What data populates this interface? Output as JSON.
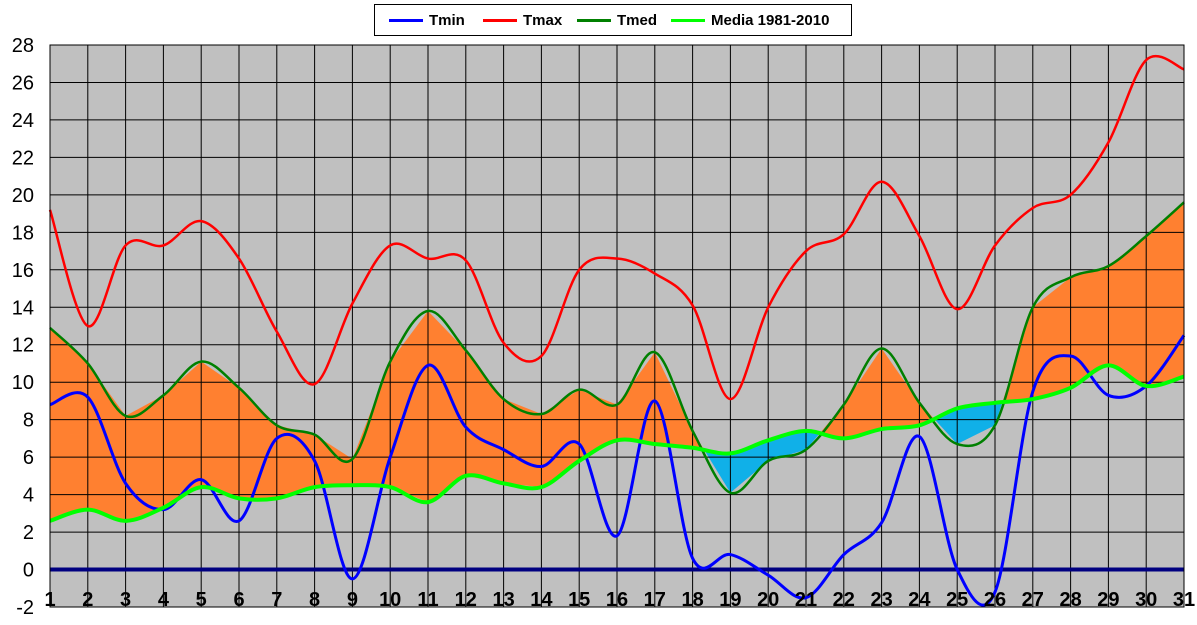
{
  "chart_data": {
    "type": "line",
    "title": "",
    "xlabel": "",
    "ylabel": "",
    "x": [
      1,
      2,
      3,
      4,
      5,
      6,
      7,
      8,
      9,
      10,
      11,
      12,
      13,
      14,
      15,
      16,
      17,
      18,
      19,
      20,
      21,
      22,
      23,
      24,
      25,
      26,
      27,
      28,
      29,
      30,
      31
    ],
    "xlim": [
      1,
      31
    ],
    "ylim": [
      -2,
      28
    ],
    "y_ticks": [
      -2,
      0,
      2,
      4,
      6,
      8,
      10,
      12,
      14,
      16,
      18,
      20,
      22,
      24,
      26,
      28
    ],
    "grid": true,
    "legend_position": "top-center",
    "plot_background": "#c0c0c0",
    "baseline": {
      "y": 0,
      "color": "#000080"
    },
    "fill": {
      "above_normal_color": "#ff8030",
      "below_normal_color": "#10b0e8"
    },
    "series": [
      {
        "name": "Tmin",
        "color": "#0000ff",
        "values": [
          8.8,
          9.2,
          4.6,
          3.2,
          4.8,
          2.6,
          7.0,
          5.8,
          -0.5,
          6.0,
          10.9,
          7.6,
          6.4,
          5.5,
          6.7,
          1.8,
          9.0,
          0.6,
          0.8,
          -0.3,
          -1.5,
          0.8,
          2.5,
          7.1,
          0.0,
          -1.2,
          9.5,
          11.4,
          9.3,
          9.8,
          12.5
        ]
      },
      {
        "name": "Tmax",
        "color": "#ff0000",
        "values": [
          19.2,
          13.0,
          17.3,
          17.3,
          18.6,
          16.6,
          12.7,
          9.9,
          14.2,
          17.3,
          16.6,
          16.5,
          12.1,
          11.4,
          16.0,
          16.6,
          15.8,
          14.1,
          9.1,
          14.0,
          17.0,
          17.9,
          20.7,
          17.8,
          13.9,
          17.3,
          19.3,
          20.0,
          22.8,
          27.2,
          26.7
        ]
      },
      {
        "name": "Tmed",
        "color": "#008000",
        "values": [
          12.9,
          11.0,
          8.2,
          9.3,
          11.1,
          9.7,
          7.7,
          7.2,
          5.9,
          11.1,
          13.8,
          11.7,
          9.1,
          8.3,
          9.6,
          8.8,
          11.6,
          7.4,
          4.1,
          5.8,
          6.4,
          8.8,
          11.8,
          8.9,
          6.7,
          7.7,
          14.0,
          15.6,
          16.2,
          17.8,
          19.6
        ]
      },
      {
        "name": "Media 1981-2010",
        "color": "#00ff00",
        "values": [
          2.6,
          3.2,
          2.6,
          3.3,
          4.4,
          3.8,
          3.8,
          4.4,
          4.5,
          4.4,
          3.6,
          5.0,
          4.6,
          4.4,
          5.8,
          6.9,
          6.7,
          6.5,
          6.2,
          6.9,
          7.4,
          7.0,
          7.5,
          7.7,
          8.6,
          8.9,
          9.1,
          9.7,
          10.9,
          9.8,
          10.3
        ]
      }
    ]
  }
}
